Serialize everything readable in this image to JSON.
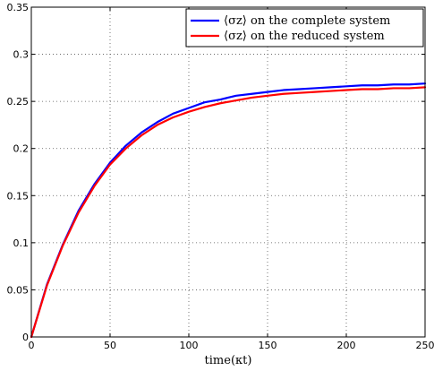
{
  "chart_data": {
    "type": "line",
    "xlabel": "time(κt)",
    "ylabel": "",
    "xlim": [
      0,
      250
    ],
    "ylim": [
      0,
      0.35
    ],
    "xticks": [
      0,
      50,
      100,
      150,
      200,
      250
    ],
    "xtick_labels": [
      "0",
      "50",
      "100",
      "150",
      "200",
      "250"
    ],
    "yticks": [
      0,
      0.05,
      0.1,
      0.15,
      0.2,
      0.25,
      0.3,
      0.35
    ],
    "ytick_labels": [
      "0",
      "0.05",
      "0.1",
      "0.15",
      "0.2",
      "0.25",
      "0.3",
      "0.35"
    ],
    "grid": true,
    "legend_position": "top-right",
    "x": [
      0,
      10,
      20,
      30,
      40,
      50,
      60,
      70,
      80,
      90,
      100,
      110,
      120,
      130,
      140,
      150,
      160,
      170,
      180,
      190,
      200,
      210,
      220,
      230,
      240,
      250
    ],
    "series": [
      {
        "name": "⟨σz⟩ on the complete system",
        "color": "#0000ff",
        "values": [
          0,
          0.056,
          0.098,
          0.134,
          0.162,
          0.185,
          0.203,
          0.217,
          0.228,
          0.237,
          0.243,
          0.249,
          0.252,
          0.256,
          0.258,
          0.26,
          0.262,
          0.263,
          0.264,
          0.265,
          0.266,
          0.267,
          0.267,
          0.268,
          0.268,
          0.269
        ]
      },
      {
        "name": "⟨σz⟩ on the reduced system",
        "color": "#ff0000",
        "values": [
          0,
          0.055,
          0.097,
          0.132,
          0.16,
          0.183,
          0.2,
          0.214,
          0.225,
          0.233,
          0.239,
          0.244,
          0.248,
          0.251,
          0.254,
          0.256,
          0.258,
          0.259,
          0.26,
          0.261,
          0.262,
          0.263,
          0.263,
          0.264,
          0.264,
          0.265
        ]
      }
    ]
  }
}
